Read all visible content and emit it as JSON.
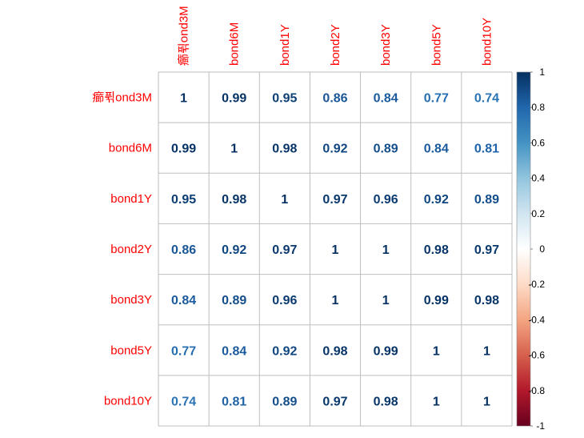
{
  "chart_data": {
    "type": "heatmap",
    "method": "number",
    "variables": [
      "癤퓎ond3M",
      "bond6M",
      "bond1Y",
      "bond2Y",
      "bond3Y",
      "bond5Y",
      "bond10Y"
    ],
    "matrix": [
      [
        1,
        0.99,
        0.95,
        0.86,
        0.84,
        0.77,
        0.74
      ],
      [
        0.99,
        1,
        0.98,
        0.92,
        0.89,
        0.84,
        0.81
      ],
      [
        0.95,
        0.98,
        1,
        0.97,
        0.96,
        0.92,
        0.89
      ],
      [
        0.86,
        0.92,
        0.97,
        1,
        1,
        0.98,
        0.97
      ],
      [
        0.84,
        0.89,
        0.96,
        1,
        1,
        0.99,
        0.98
      ],
      [
        0.77,
        0.84,
        0.92,
        0.98,
        0.99,
        1,
        1
      ],
      [
        0.74,
        0.81,
        0.89,
        0.97,
        0.98,
        1,
        1
      ]
    ],
    "colorbar": {
      "range": [
        -1,
        1
      ],
      "ticks": [
        "1",
        "0.8",
        "0.6",
        "0.4",
        "0.2",
        "0",
        "-0.2",
        "-0.4",
        "-0.6",
        "-0.8",
        "-1"
      ],
      "palette": [
        "#67001F",
        "#B2182B",
        "#D6604D",
        "#F4A582",
        "#FDDBC7",
        "#FFFFFF",
        "#D1E5F0",
        "#92C5DE",
        "#4393C3",
        "#2166AC",
        "#053061"
      ]
    },
    "label_color": "#FF0000",
    "grid_color": "#BEBEBE",
    "grid": true,
    "legend": "right"
  }
}
